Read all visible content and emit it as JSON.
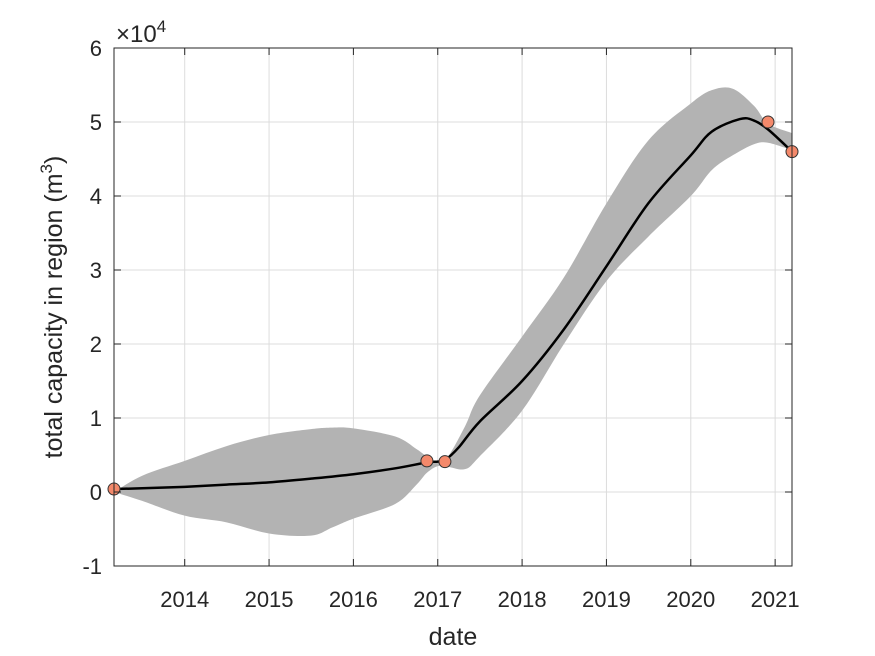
{
  "chart_data": {
    "type": "line",
    "xlabel": "date",
    "ylabel_text": "total capacity in region (m",
    "ylabel_superscript": "3",
    "ylabel_close": ")",
    "y_exponent_prefix": "×10",
    "y_exponent_power": "4",
    "xlim": [
      "2013-03-01",
      "2021-03-15"
    ],
    "ylim": [
      -1,
      6
    ],
    "x_ticks": [
      "2014",
      "2015",
      "2016",
      "2017",
      "2018",
      "2019",
      "2020",
      "2021"
    ],
    "y_ticks": [
      "-1",
      "0",
      "1",
      "2",
      "3",
      "4",
      "5",
      "6"
    ],
    "grid": true,
    "colors": {
      "band": "#b3b3b3",
      "line": "#000000",
      "marker_fill": "#f4896b",
      "marker_edge": "#333333"
    },
    "series": [
      {
        "type": "band",
        "x": [
          "2013-03-01",
          "2013-07-01",
          "2014-01-01",
          "2014-07-01",
          "2015-01-01",
          "2015-07-01",
          "2015-10-01",
          "2016-01-01",
          "2016-07-01",
          "2016-10-01",
          "2016-11-15",
          "2017-01-01",
          "2017-02-15",
          "2017-05-01",
          "2017-07-01",
          "2018-01-01",
          "2018-07-01",
          "2019-01-01",
          "2019-07-01",
          "2020-01-01",
          "2020-04-01",
          "2020-07-01",
          "2020-10-01",
          "2020-12-01",
          "2021-03-15"
        ],
        "lower": [
          0.0,
          -0.12,
          -0.32,
          -0.41,
          -0.56,
          -0.59,
          -0.48,
          -0.36,
          -0.16,
          0.1,
          0.26,
          0.35,
          0.34,
          0.31,
          0.48,
          1.1,
          2.0,
          2.85,
          3.45,
          4.0,
          4.35,
          4.55,
          4.7,
          4.72,
          4.62
        ],
        "upper": [
          0.0,
          0.22,
          0.42,
          0.62,
          0.77,
          0.85,
          0.87,
          0.86,
          0.75,
          0.58,
          0.48,
          0.4,
          0.48,
          0.9,
          1.3,
          2.1,
          2.9,
          3.9,
          4.75,
          5.25,
          5.43,
          5.45,
          5.22,
          4.98,
          4.85
        ]
      },
      {
        "type": "line",
        "x": [
          "2013-03-01",
          "2013-07-01",
          "2014-01-01",
          "2014-07-01",
          "2015-01-01",
          "2015-07-01",
          "2016-01-01",
          "2016-07-01",
          "2016-11-15",
          "2017-01-01",
          "2017-02-01",
          "2017-04-01",
          "2017-07-01",
          "2018-01-01",
          "2018-07-01",
          "2019-01-01",
          "2019-07-01",
          "2020-01-01",
          "2020-04-01",
          "2020-08-01",
          "2020-10-01",
          "2020-12-01",
          "2021-03-15"
        ],
        "values": [
          0.04,
          0.05,
          0.07,
          0.1,
          0.13,
          0.18,
          0.24,
          0.32,
          0.4,
          0.41,
          0.43,
          0.6,
          0.95,
          1.5,
          2.2,
          3.05,
          3.9,
          4.55,
          4.87,
          5.04,
          5.02,
          4.9,
          4.6
        ]
      },
      {
        "type": "scatter",
        "x": [
          "2013-03-01",
          "2016-11-15",
          "2017-02-01",
          "2020-12-01",
          "2021-03-15"
        ],
        "values": [
          0.04,
          0.42,
          0.41,
          5.0,
          4.6
        ]
      }
    ]
  }
}
